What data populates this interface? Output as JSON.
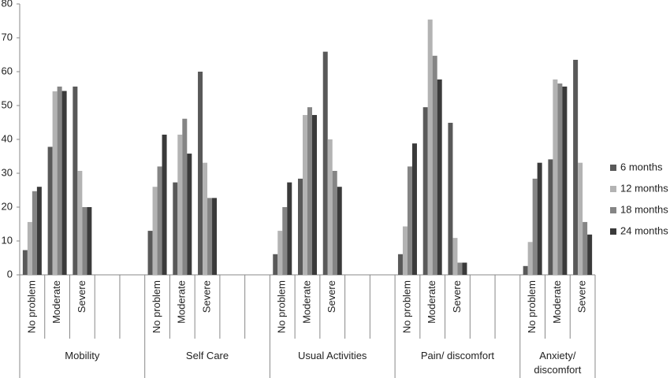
{
  "chart_data": {
    "type": "bar",
    "groups": [
      {
        "name": "Mobility",
        "categories": [
          "No problem",
          "Moderate",
          "Severe",
          null,
          null
        ]
      },
      {
        "name": "Self Care",
        "categories": [
          "No problem",
          "Moderate",
          "Severe",
          null,
          null
        ]
      },
      {
        "name": "Usual Activities",
        "categories": [
          "No problem",
          "Moderate",
          "Severe",
          null,
          null
        ]
      },
      {
        "name": "Pain/ discomfort",
        "categories": [
          "No problem",
          "Moderate",
          "Severe",
          null,
          null
        ]
      },
      {
        "name": "Anxiety/ discomfort",
        "categories": [
          "No problem",
          "Moderate",
          "Severe"
        ]
      }
    ],
    "series": [
      {
        "name": "6 months",
        "color": "#595959",
        "values": [
          7.3,
          37.8,
          55.6,
          null,
          null,
          13,
          27.3,
          60,
          null,
          null,
          6.1,
          28.4,
          65.9,
          null,
          null,
          6.1,
          49.5,
          44.9,
          null,
          null,
          2.6,
          34.1,
          63.5
        ]
      },
      {
        "name": "12 months",
        "color": "#b3b3b3",
        "values": [
          15.6,
          54.2,
          30.7,
          null,
          null,
          26,
          41.4,
          33.1,
          null,
          null,
          13,
          47.2,
          40,
          null,
          null,
          14.3,
          75.4,
          10.9,
          null,
          null,
          9.7,
          57.7,
          33.1
        ]
      },
      {
        "name": "18 months",
        "color": "#858585",
        "values": [
          24.7,
          55.6,
          20,
          null,
          null,
          32,
          46.1,
          22.7,
          null,
          null,
          20,
          49.5,
          30.7,
          null,
          null,
          32,
          64.7,
          3.6,
          null,
          null,
          28.4,
          56.5,
          15.6
        ]
      },
      {
        "name": "24 months",
        "color": "#3a3a3a",
        "values": [
          26,
          54.3,
          20,
          null,
          null,
          41.4,
          35.8,
          22.7,
          null,
          null,
          27.3,
          47.2,
          26,
          null,
          null,
          38.8,
          57.7,
          3.6,
          null,
          null,
          33.1,
          55.6,
          11.9
        ]
      }
    ],
    "ylim": [
      0,
      80
    ],
    "yticks": [
      0,
      10,
      20,
      30,
      40,
      50,
      60,
      70,
      80
    ],
    "grid": false,
    "legend": "right"
  }
}
